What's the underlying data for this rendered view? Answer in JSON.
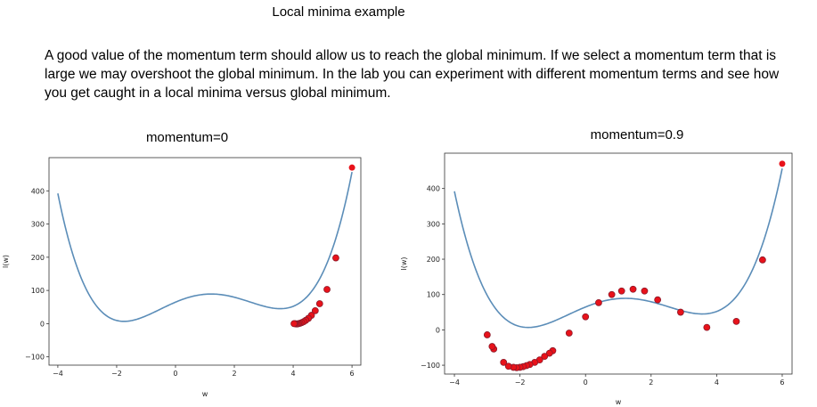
{
  "page": {
    "title": "Local minima example",
    "intro": "A good value of the momentum term should allow us to reach the global minimum. If we select a momentum term that is large we may overshoot the global minimum. In the lab you can experiment with different momentum terms and see how you get caught in a local minima versus global minimum."
  },
  "colors": {
    "curve": "#5b8db8",
    "points": "#e8121a",
    "point_edge": "#8b1a2a"
  },
  "chart_data": [
    {
      "type": "line",
      "title": "momentum=0",
      "xlabel": "w",
      "ylabel": "l(w)",
      "xlim": [
        -4.3,
        6.3
      ],
      "ylim": [
        -125,
        500
      ],
      "xticks": [
        -4,
        -2,
        0,
        2,
        4,
        6
      ],
      "yticks": [
        -100,
        0,
        100,
        200,
        300,
        400
      ],
      "curve_x_range": [
        -4,
        6
      ],
      "curve": "l(w) = 1.24*w^4 - 5*w^3 - 10*w^2 + 37.5*w + 64.7",
      "series": [
        {
          "type": "scatter",
          "x": [
            6.0,
            5.45,
            5.15,
            4.9,
            4.75,
            4.62,
            4.52,
            4.43,
            4.36,
            4.29,
            4.23,
            4.18,
            4.14,
            4.1,
            4.06,
            4.03
          ],
          "y": [
            470,
            198,
            103,
            60,
            39,
            25,
            16,
            10,
            6,
            3,
            1,
            0,
            -1,
            -1,
            0,
            0
          ]
        }
      ]
    },
    {
      "type": "line",
      "title": "momentum=0.9",
      "xlabel": "w",
      "ylabel": "l(w)",
      "xlim": [
        -4.3,
        6.3
      ],
      "ylim": [
        -125,
        500
      ],
      "xticks": [
        -4,
        -2,
        0,
        2,
        4,
        6
      ],
      "yticks": [
        -100,
        0,
        100,
        200,
        300,
        400
      ],
      "curve_x_range": [
        -4,
        6
      ],
      "curve": "l(w) = 1.24*w^4 - 5*w^3 - 10*w^2 + 37.5*w + 64.7",
      "series": [
        {
          "type": "scatter",
          "x": [
            6.0,
            5.4,
            4.6,
            3.7,
            2.9,
            2.2,
            1.8,
            1.45,
            1.1,
            0.8,
            0.4,
            0.0,
            -0.5,
            -1.0,
            -1.1,
            -1.25,
            -1.4,
            -1.55,
            -1.7,
            -1.8,
            -1.9,
            -2.0,
            -2.1,
            -2.2,
            -2.35,
            -2.5,
            -2.8,
            -2.85,
            -3.0
          ],
          "y": [
            470,
            198,
            24,
            7,
            50,
            85,
            110,
            115,
            110,
            100,
            77,
            37,
            -9,
            -59,
            -66,
            -75,
            -85,
            -92,
            -98,
            -101,
            -104,
            -106,
            -107,
            -106,
            -103,
            -92,
            -54,
            -47,
            -14
          ]
        }
      ]
    }
  ]
}
